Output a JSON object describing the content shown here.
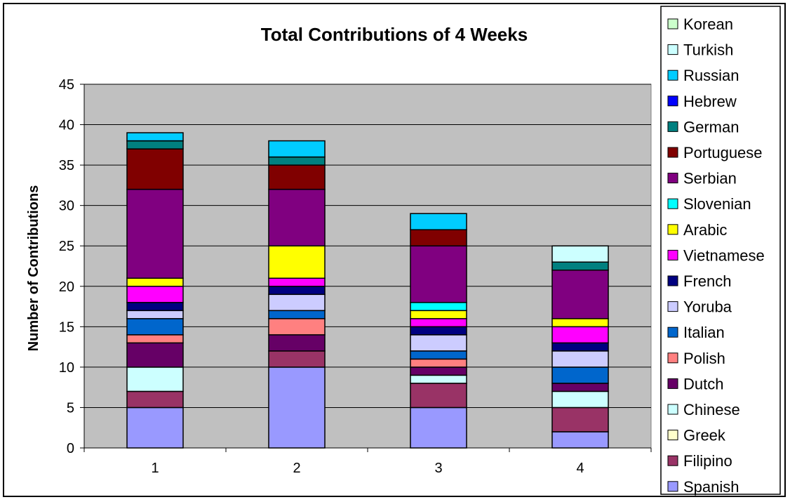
{
  "chart_data": {
    "type": "bar",
    "stacked": true,
    "title": "Total Contributions of 4 Weeks",
    "xlabel": "",
    "ylabel": "Number of Contributions",
    "ylim": [
      0,
      45
    ],
    "yticks": [
      0,
      5,
      10,
      15,
      20,
      25,
      30,
      35,
      40,
      45
    ],
    "categories": [
      "1",
      "2",
      "3",
      "4"
    ],
    "grid": true,
    "legend_position": "right",
    "plot_background": "#c0c0c0",
    "series": [
      {
        "name": "Spanish",
        "color": "#9999ff",
        "values": [
          5,
          10,
          5,
          2
        ]
      },
      {
        "name": "Filipino",
        "color": "#993366",
        "values": [
          2,
          2,
          3,
          3
        ]
      },
      {
        "name": "Greek",
        "color": "#ffffcc",
        "values": [
          0,
          0,
          0,
          0
        ]
      },
      {
        "name": "Chinese",
        "color": "#ccffff",
        "values": [
          3,
          0,
          1,
          2
        ]
      },
      {
        "name": "Dutch",
        "color": "#660066",
        "values": [
          3,
          2,
          1,
          1
        ]
      },
      {
        "name": "Polish",
        "color": "#ff8080",
        "values": [
          1,
          2,
          1,
          0
        ]
      },
      {
        "name": "Italian",
        "color": "#0066cc",
        "values": [
          2,
          1,
          1,
          2
        ]
      },
      {
        "name": "Yoruba",
        "color": "#ccccff",
        "values": [
          1,
          2,
          2,
          2
        ]
      },
      {
        "name": "French",
        "color": "#000080",
        "values": [
          1,
          1,
          1,
          1
        ]
      },
      {
        "name": "Vietnamese",
        "color": "#ff00ff",
        "values": [
          2,
          1,
          1,
          2
        ]
      },
      {
        "name": "Arabic",
        "color": "#ffff00",
        "values": [
          1,
          4,
          1,
          1
        ]
      },
      {
        "name": "Slovenian",
        "color": "#00ffff",
        "values": [
          0,
          0,
          1,
          0
        ]
      },
      {
        "name": "Serbian",
        "color": "#800080",
        "values": [
          11,
          7,
          7,
          6
        ]
      },
      {
        "name": "Portuguese",
        "color": "#800000",
        "values": [
          5,
          3,
          2,
          0
        ]
      },
      {
        "name": "German",
        "color": "#008080",
        "values": [
          1,
          1,
          0,
          1
        ]
      },
      {
        "name": "Hebrew",
        "color": "#0000ff",
        "values": [
          0,
          0,
          0,
          0
        ]
      },
      {
        "name": "Russian",
        "color": "#00ccff",
        "values": [
          1,
          2,
          2,
          0
        ]
      },
      {
        "name": "Turkish",
        "color": "#ccffff",
        "values": [
          0,
          0,
          0,
          2
        ]
      },
      {
        "name": "Korean",
        "color": "#ccffcc",
        "values": [
          0,
          0,
          0,
          0
        ]
      }
    ]
  }
}
